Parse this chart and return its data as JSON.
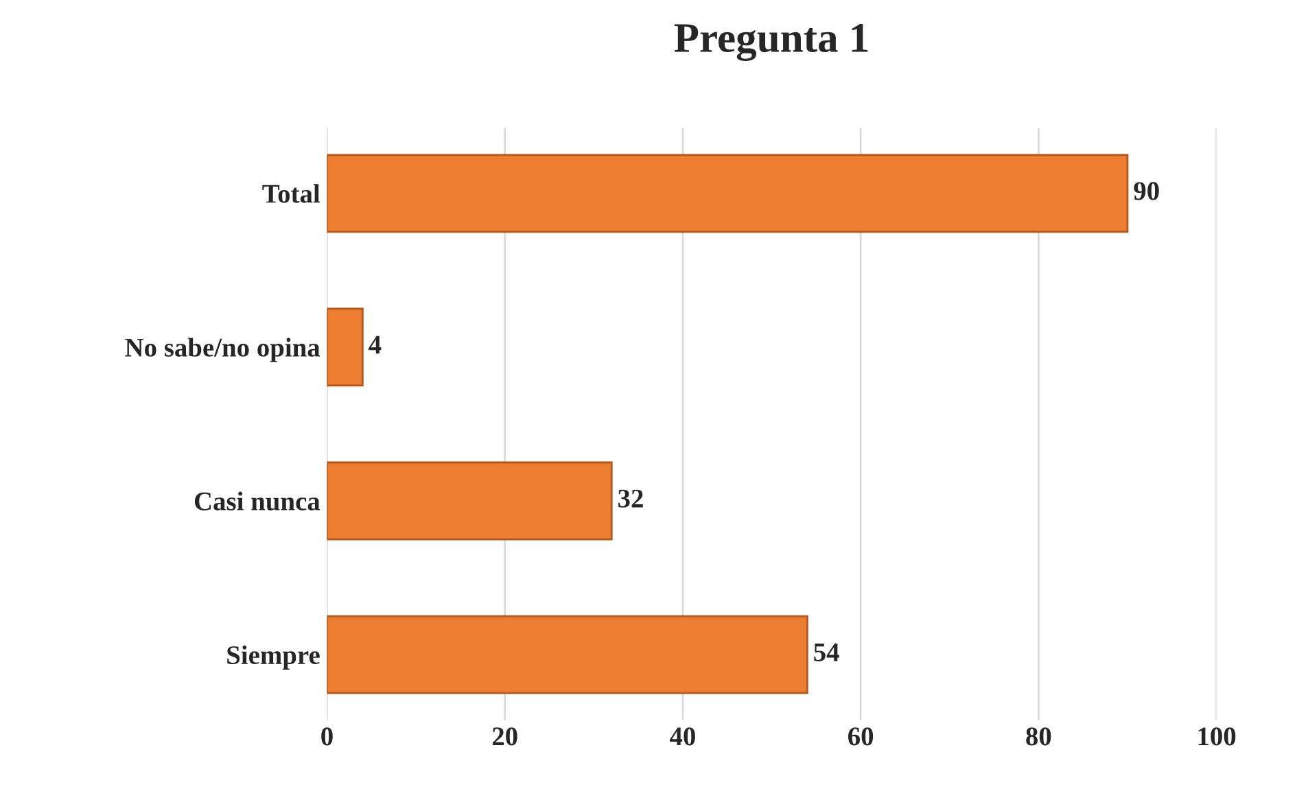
{
  "chart_data": {
    "type": "bar",
    "title": "Pregunta 1",
    "orientation": "horizontal",
    "categories": [
      "Total",
      "No sabe/no opina",
      "Casi nunca",
      "Siempre"
    ],
    "values": [
      90,
      4,
      32,
      54
    ],
    "color": "#ed7d31",
    "xlim": [
      0,
      100
    ],
    "xticks": [
      0,
      20,
      40,
      60,
      80,
      100
    ],
    "grid": "x",
    "data_labels": true
  }
}
